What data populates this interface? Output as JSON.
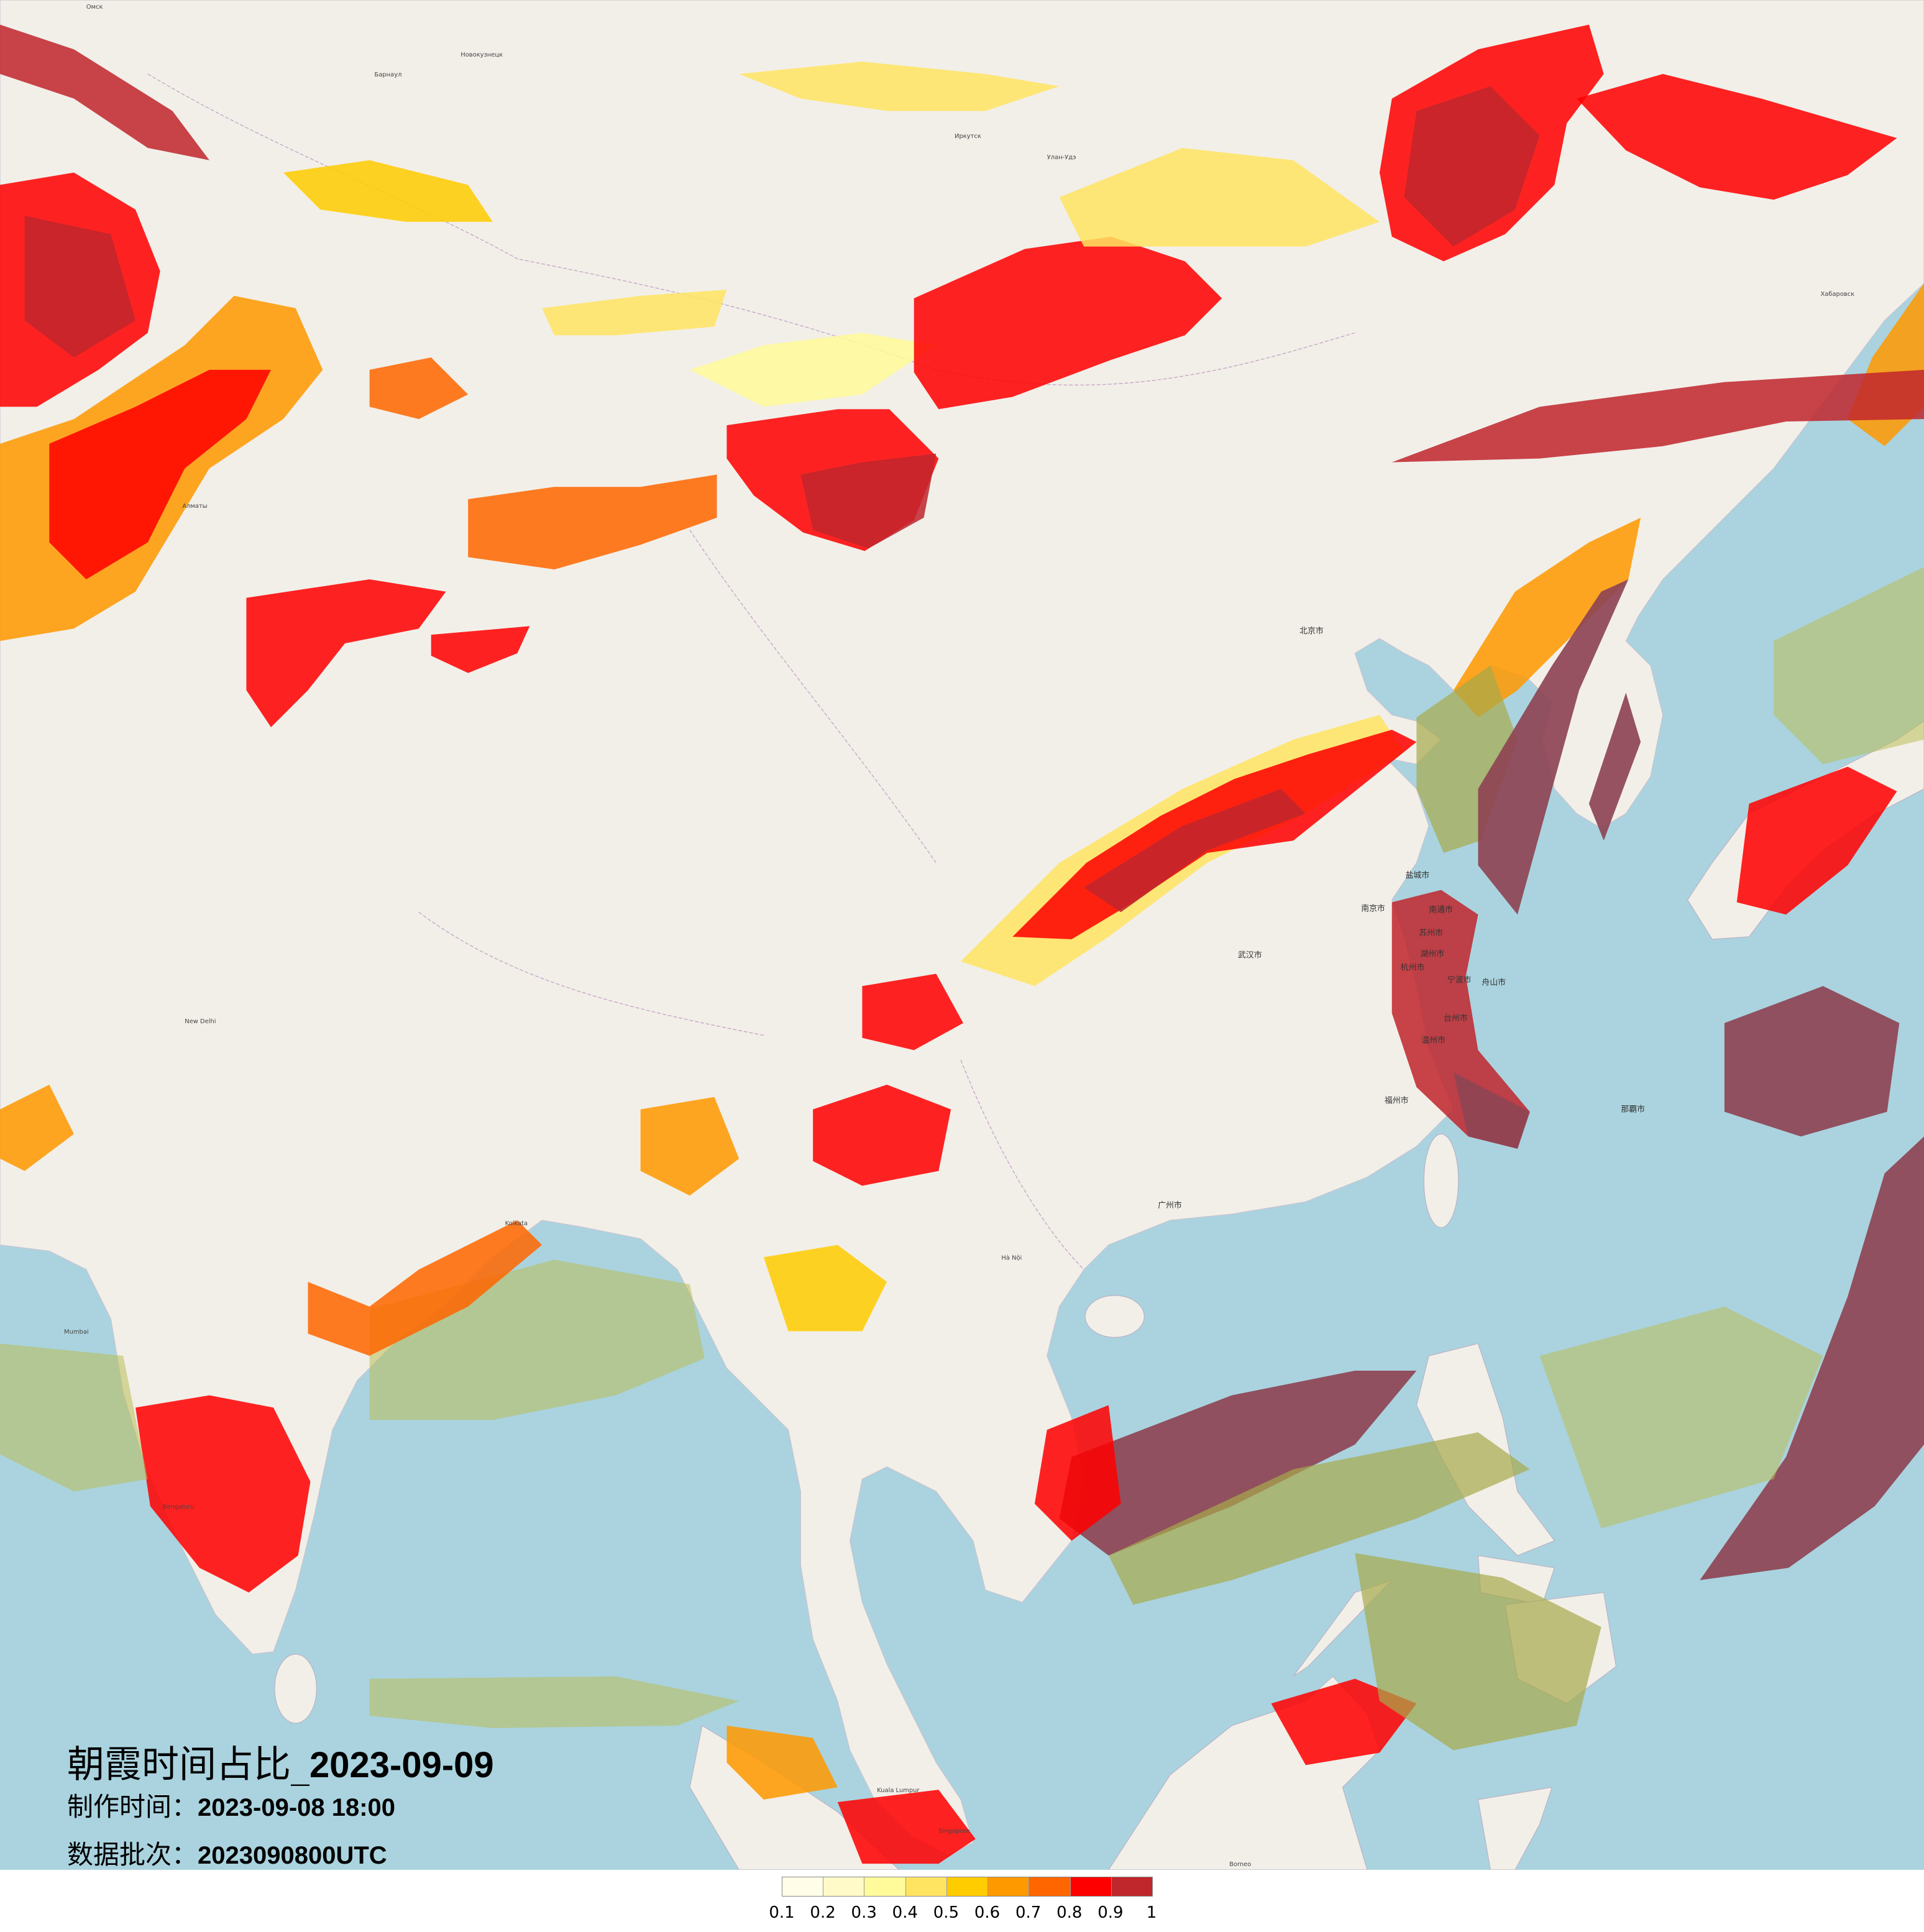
{
  "title": {
    "main": "朝霞时间占比_",
    "date": "2023-09-09",
    "made_label": "制作时间：",
    "made_value": "2023-09-08 18:00",
    "batch_label": "数据批次：",
    "batch_value": "2023090800UTC"
  },
  "legend": {
    "colors": [
      "#fffde8",
      "#fffac8",
      "#fffa9a",
      "#ffe462",
      "#ffcc00",
      "#ff9900",
      "#ff6600",
      "#ff0000",
      "#c0272d"
    ],
    "labels": [
      "0.1",
      "0.2",
      "0.3",
      "0.4",
      "0.5",
      "0.6",
      "0.7",
      "0.8",
      "0.9",
      "1"
    ]
  },
  "basemap": {
    "land_color": "#f2efe9",
    "ocean_color": "#aad3df",
    "labels": {
      "omsk": "Омск",
      "barnaul": "Барнаул",
      "novokuznetsk": "Новокузнецк",
      "irkutsk": "Иркутск",
      "ulan_ude": "Улан-Удэ",
      "khabarovsk": "Хабаровск",
      "almaty": "Алматы",
      "beijing": "北京市",
      "wuhan": "武汉市",
      "guangzhou": "广州市",
      "yancheng": "盐城市",
      "nanjing": "南京市",
      "nantong": "南通市",
      "suzhou": "苏州市",
      "huzhou": "湖州市",
      "hangzhou": "杭州市",
      "ningbo": "宁波市",
      "zhoushan": "舟山市",
      "taizhou": "台州市",
      "wenzhou": "温州市",
      "fuzhou": "福州市",
      "naha": "那覇市",
      "new_delhi": "New Delhi",
      "kolkata": "Kolkata",
      "mumbai": "Mumbai",
      "bengaluru": "Bengaluru",
      "hanoi": "Hà Nội",
      "kuala_lumpur": "Kuala Lumpur",
      "singapore": "Singapore",
      "borneo": "Borneo"
    }
  }
}
